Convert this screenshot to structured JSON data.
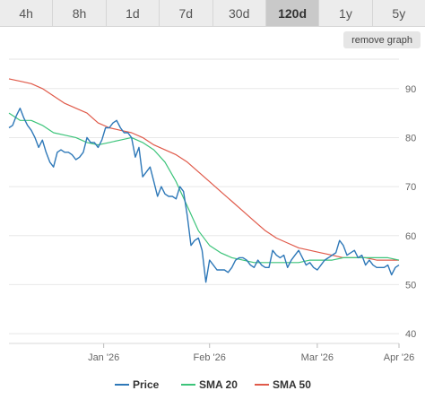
{
  "range_tabs": [
    "4h",
    "8h",
    "1d",
    "7d",
    "30d",
    "120d",
    "1y",
    "5y"
  ],
  "active_tab": "120d",
  "remove_graph_label": "remove graph",
  "chart_data": {
    "type": "line",
    "x_ticks": [
      "Jan '26",
      "Feb '26",
      "Mar '26",
      "Apr '26"
    ],
    "y_ticks": [
      40,
      50,
      60,
      70,
      80,
      90
    ],
    "ylim": [
      38,
      96
    ],
    "grid": true,
    "legend_position": "bottom",
    "series": [
      {
        "name": "Price",
        "color": "#2e78b8",
        "points": [
          [
            0,
            82
          ],
          [
            1,
            82.5
          ],
          [
            2,
            84.5
          ],
          [
            3,
            86
          ],
          [
            4,
            84
          ],
          [
            5,
            82.5
          ],
          [
            6,
            81.5
          ],
          [
            7,
            80
          ],
          [
            8,
            78
          ],
          [
            9,
            79.5
          ],
          [
            10,
            77
          ],
          [
            11,
            75
          ],
          [
            12,
            74
          ],
          [
            13,
            77
          ],
          [
            14,
            77.5
          ],
          [
            15,
            77
          ],
          [
            16,
            77
          ],
          [
            17,
            76.5
          ],
          [
            18,
            75.5
          ],
          [
            19,
            76
          ],
          [
            20,
            77
          ],
          [
            21,
            80
          ],
          [
            22,
            79
          ],
          [
            23,
            79
          ],
          [
            24,
            78
          ],
          [
            25,
            79.5
          ],
          [
            26,
            82
          ],
          [
            27,
            82
          ],
          [
            28,
            83
          ],
          [
            29,
            83.5
          ],
          [
            30,
            82
          ],
          [
            31,
            81
          ],
          [
            32,
            81
          ],
          [
            33,
            80
          ],
          [
            34,
            76
          ],
          [
            35,
            78
          ],
          [
            36,
            72
          ],
          [
            37,
            73
          ],
          [
            38,
            74
          ],
          [
            39,
            71
          ],
          [
            40,
            68
          ],
          [
            41,
            70
          ],
          [
            42,
            68.5
          ],
          [
            43,
            68
          ],
          [
            44,
            68
          ],
          [
            45,
            67.5
          ],
          [
            46,
            70
          ],
          [
            47,
            69
          ],
          [
            48,
            64
          ],
          [
            49,
            58
          ],
          [
            50,
            59
          ],
          [
            51,
            59.5
          ],
          [
            52,
            57
          ],
          [
            53,
            50.5
          ],
          [
            54,
            55
          ],
          [
            55,
            54
          ],
          [
            56,
            53
          ],
          [
            57,
            53
          ],
          [
            58,
            53
          ],
          [
            59,
            52.5
          ],
          [
            60,
            53.5
          ],
          [
            61,
            55
          ],
          [
            62,
            55.5
          ],
          [
            63,
            55.5
          ],
          [
            64,
            55
          ],
          [
            65,
            54
          ],
          [
            66,
            53.5
          ],
          [
            67,
            55
          ],
          [
            68,
            54
          ],
          [
            69,
            53.5
          ],
          [
            70,
            53.5
          ],
          [
            71,
            57
          ],
          [
            72,
            56
          ],
          [
            73,
            55.5
          ],
          [
            74,
            56
          ],
          [
            75,
            53.5
          ],
          [
            76,
            55
          ],
          [
            77,
            56
          ],
          [
            78,
            57
          ],
          [
            79,
            55.5
          ],
          [
            80,
            54
          ],
          [
            81,
            54.5
          ],
          [
            82,
            53.5
          ],
          [
            83,
            53
          ],
          [
            84,
            54
          ],
          [
            85,
            55
          ],
          [
            86,
            55.5
          ],
          [
            87,
            56
          ],
          [
            88,
            56.5
          ],
          [
            89,
            59
          ],
          [
            90,
            58
          ],
          [
            91,
            56
          ],
          [
            92,
            56.5
          ],
          [
            93,
            57
          ],
          [
            94,
            55.5
          ],
          [
            95,
            56
          ],
          [
            96,
            54
          ],
          [
            97,
            55
          ],
          [
            98,
            54
          ],
          [
            99,
            53.5
          ],
          [
            100,
            53.5
          ],
          [
            101,
            53.5
          ],
          [
            102,
            54
          ],
          [
            103,
            52
          ],
          [
            104,
            53.5
          ],
          [
            105,
            54
          ]
        ]
      },
      {
        "name": "SMA 20",
        "color": "#3cc47a",
        "points": [
          [
            0,
            85
          ],
          [
            3,
            83.5
          ],
          [
            6,
            83.5
          ],
          [
            9,
            82.5
          ],
          [
            12,
            81
          ],
          [
            15,
            80.5
          ],
          [
            18,
            80
          ],
          [
            21,
            79
          ],
          [
            24,
            78.5
          ],
          [
            27,
            79
          ],
          [
            30,
            79.5
          ],
          [
            33,
            80
          ],
          [
            36,
            79
          ],
          [
            39,
            77.5
          ],
          [
            42,
            75
          ],
          [
            45,
            71
          ],
          [
            48,
            66
          ],
          [
            51,
            61
          ],
          [
            54,
            58
          ],
          [
            57,
            56.5
          ],
          [
            60,
            55.5
          ],
          [
            63,
            55
          ],
          [
            66,
            54.5
          ],
          [
            69,
            54.5
          ],
          [
            72,
            54.5
          ],
          [
            75,
            54.5
          ],
          [
            78,
            54.5
          ],
          [
            81,
            55
          ],
          [
            84,
            55
          ],
          [
            87,
            55
          ],
          [
            90,
            55.5
          ],
          [
            93,
            55.5
          ],
          [
            96,
            55.5
          ],
          [
            99,
            55.5
          ],
          [
            102,
            55.5
          ],
          [
            105,
            55
          ]
        ]
      },
      {
        "name": "SMA 50",
        "color": "#e05a4a",
        "points": [
          [
            0,
            92
          ],
          [
            3,
            91.5
          ],
          [
            6,
            91
          ],
          [
            9,
            90
          ],
          [
            12,
            88.5
          ],
          [
            15,
            87
          ],
          [
            18,
            86
          ],
          [
            21,
            85
          ],
          [
            24,
            83
          ],
          [
            27,
            82
          ],
          [
            30,
            81.5
          ],
          [
            33,
            81
          ],
          [
            36,
            80
          ],
          [
            39,
            78.5
          ],
          [
            42,
            77.5
          ],
          [
            45,
            76.5
          ],
          [
            48,
            75
          ],
          [
            51,
            73
          ],
          [
            54,
            71
          ],
          [
            57,
            69
          ],
          [
            60,
            67
          ],
          [
            63,
            65
          ],
          [
            66,
            63
          ],
          [
            69,
            61
          ],
          [
            72,
            59.5
          ],
          [
            75,
            58.5
          ],
          [
            78,
            57.5
          ],
          [
            81,
            57
          ],
          [
            84,
            56.5
          ],
          [
            87,
            56
          ],
          [
            90,
            55.5
          ],
          [
            93,
            55.5
          ],
          [
            96,
            55.5
          ],
          [
            99,
            55
          ],
          [
            102,
            55
          ],
          [
            105,
            55
          ]
        ]
      }
    ]
  }
}
